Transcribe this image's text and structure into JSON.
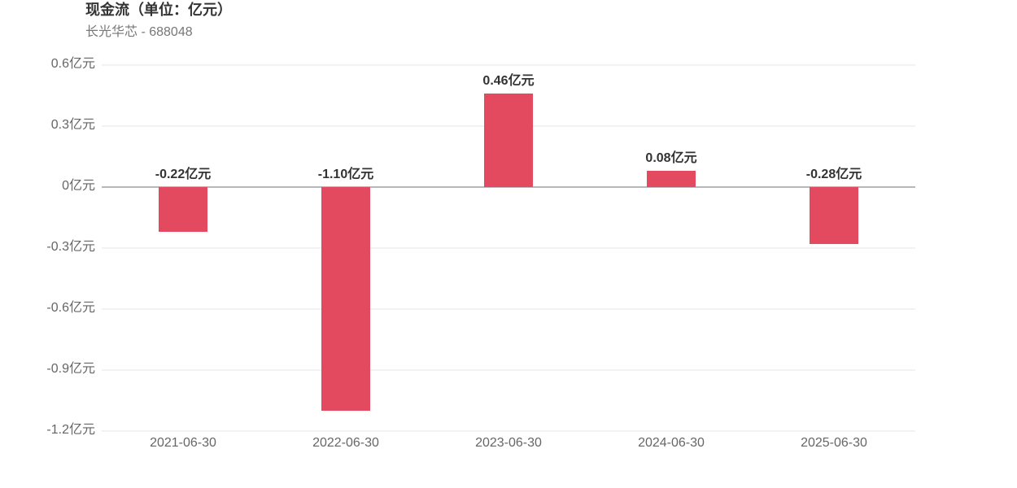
{
  "chart_data": {
    "type": "bar",
    "title": "现金流（单位：亿元）",
    "subtitle": "长光华芯 - 688048",
    "categories": [
      "2021-06-30",
      "2022-06-30",
      "2023-06-30",
      "2024-06-30",
      "2025-06-30"
    ],
    "values": [
      -0.22,
      -1.1,
      0.46,
      0.08,
      -0.28
    ],
    "value_labels": [
      "-0.22亿元",
      "-1.10亿元",
      "0.46亿元",
      "0.08亿元",
      "-0.28亿元"
    ],
    "color": "#e34a5f",
    "ylim": [
      -1.2,
      0.6
    ],
    "yticks": [
      {
        "value": 0.6,
        "label": "0.6亿元"
      },
      {
        "value": 0.3,
        "label": "0.3亿元"
      },
      {
        "value": 0,
        "label": "0亿元"
      },
      {
        "value": -0.3,
        "label": "-0.3亿元"
      },
      {
        "value": -0.6,
        "label": "-0.6亿元"
      },
      {
        "value": -0.9,
        "label": "-0.9亿元"
      },
      {
        "value": -1.2,
        "label": "-1.2亿元"
      }
    ],
    "grid": true
  }
}
